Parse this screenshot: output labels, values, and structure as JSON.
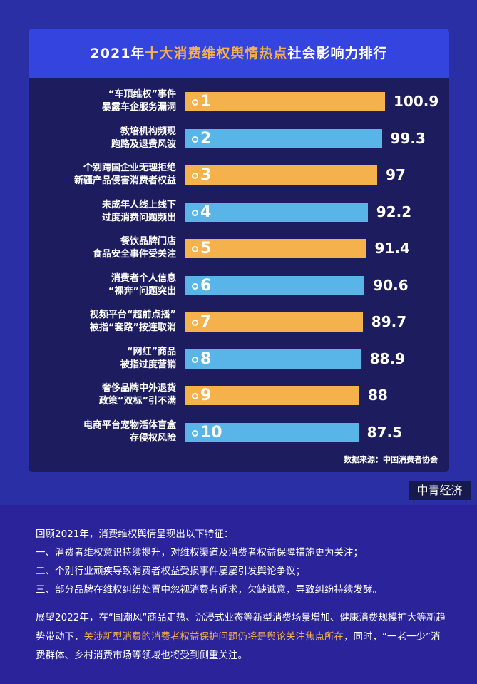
{
  "chart_data": {
    "type": "bar",
    "title_parts": [
      "2021年",
      "十大消费维权舆情热点",
      "社会影响力排行"
    ],
    "categories": [
      "“车顶维权”事件\n暴露车企服务漏洞",
      "教培机构频现\n跑路及退费风波",
      "个别跨国企业无理拒绝\n新疆产品侵害消费者权益",
      "未成年人线上线下\n过度消费问题频出",
      "餐饮品牌门店\n食品安全事件受关注",
      "消费者个人信息\n“裸奔”问题突出",
      "视频平台“超前点播”\n被指“套路”按连取消",
      "“网红”商品\n被指过度营销",
      "奢侈品牌中外退货\n政策“双标”引不满",
      "电商平台宠物活体盲盒\n存侵权风险"
    ],
    "ranks": [
      1,
      2,
      3,
      4,
      5,
      6,
      7,
      8,
      9,
      10
    ],
    "values": [
      100.9,
      99.3,
      97,
      92.2,
      91.4,
      90.6,
      89.7,
      88.9,
      88,
      87.5
    ],
    "colors": [
      "#f5b14c",
      "#59b5e8",
      "#f5b14c",
      "#59b5e8",
      "#f5b14c",
      "#59b5e8",
      "#f5b14c",
      "#59b5e8",
      "#f5b14c",
      "#59b5e8"
    ],
    "source": "数据来源：中国消费者协会"
  },
  "brand": "中青经济",
  "summary": {
    "intro": "回顾2021年，消费维权舆情呈现出以下特征：",
    "points": [
      "一、消费者维权意识持续提升，对维权渠道及消费者权益保障措施更为关注；",
      "二、个别行业顽疾导致消费者权益受损事件屡屡引发舆论争议；",
      "三、部分品牌在维权纠纷处置中忽视消费者诉求，欠缺诚意，导致纠纷持续发酵。"
    ],
    "outlook_parts": [
      "展望2022年，在“国潮风”商品走热、沉浸式业态等新型消费场景增加、健康消费规模扩大等新趋势带动下，",
      "关涉新型消费的消费者权益保护问题仍将是舆论关注焦点所在",
      "，同时，“一老一少”消费群体、乡村消费市场等领域也将受到侧重关注。"
    ]
  }
}
